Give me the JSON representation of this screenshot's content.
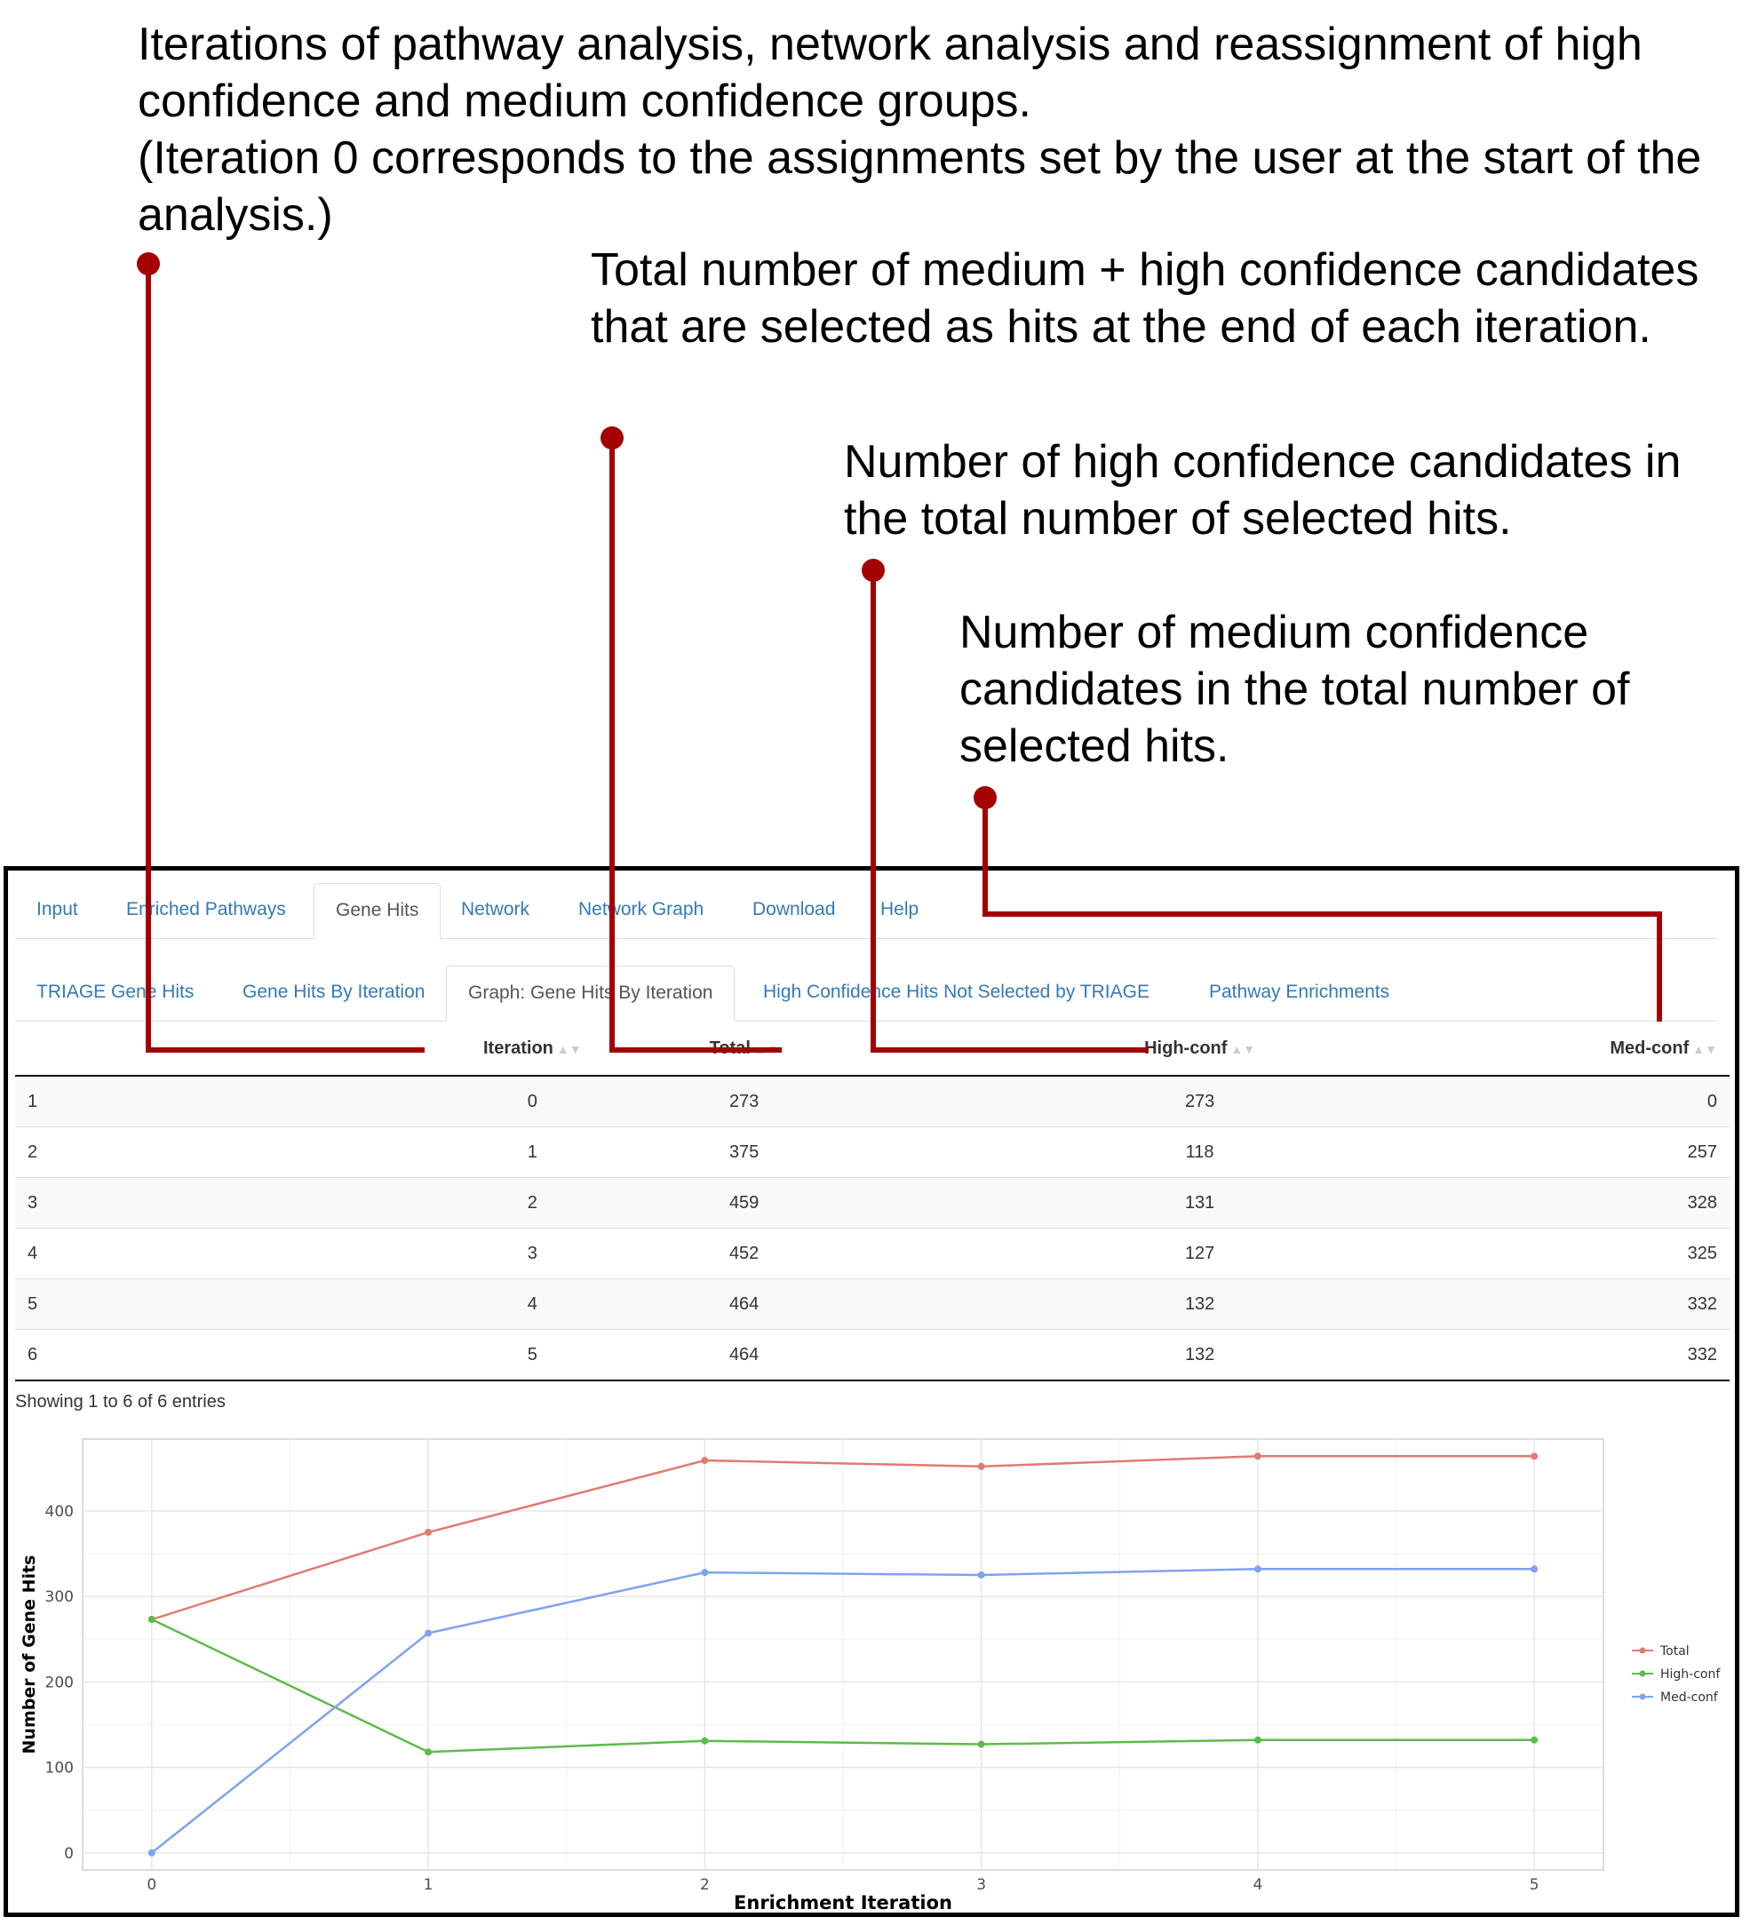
{
  "annotations": {
    "iterations_text": "Iterations of pathway analysis, network analysis and reassignment of high confidence and medium confidence groups.",
    "iterations_note": "(Iteration 0 corresponds to the assignments set by the user at the start of the analysis.)",
    "total_text": "Total number of medium + high confidence candidates that are selected as hits at the end of each iteration.",
    "high_conf_text": "Number of high confidence candidates in the total number of selected hits.",
    "med_conf_text": "Number of medium confidence candidates in the total number of selected hits."
  },
  "main_tabs": [
    {
      "label": "Input",
      "active": false
    },
    {
      "label": "Enriched Pathways",
      "active": false
    },
    {
      "label": "Gene Hits",
      "active": true
    },
    {
      "label": "Network",
      "active": false
    },
    {
      "label": "Network Graph",
      "active": false
    },
    {
      "label": "Download",
      "active": false
    },
    {
      "label": "Help",
      "active": false
    }
  ],
  "sub_tabs": [
    {
      "label": "TRIAGE Gene Hits",
      "active": false
    },
    {
      "label": "Gene Hits By Iteration",
      "active": false
    },
    {
      "label": "Graph: Gene Hits By Iteration",
      "active": true
    },
    {
      "label": "High Confidence Hits Not Selected by TRIAGE",
      "active": false
    },
    {
      "label": "Pathway Enrichments",
      "active": false
    }
  ],
  "table": {
    "columns": [
      "",
      "Iteration",
      "Total",
      "High-conf",
      "Med-conf"
    ],
    "rows": [
      [
        "1",
        "0",
        "273",
        "273",
        "0"
      ],
      [
        "2",
        "1",
        "375",
        "118",
        "257"
      ],
      [
        "3",
        "2",
        "459",
        "131",
        "328"
      ],
      [
        "4",
        "3",
        "452",
        "127",
        "325"
      ],
      [
        "5",
        "4",
        "464",
        "132",
        "332"
      ],
      [
        "6",
        "5",
        "464",
        "132",
        "332"
      ]
    ],
    "info": "Showing 1 to 6 of 6 entries"
  },
  "colors": {
    "annotation_line": "#a50000",
    "total": "#e07b72",
    "high_conf": "#5dbb4a",
    "med_conf": "#7ea3f2",
    "tab_link": "#337ab7"
  },
  "chart_data": {
    "type": "line",
    "x": [
      0,
      1,
      2,
      3,
      4,
      5
    ],
    "series": [
      {
        "name": "Total",
        "values": [
          273,
          375,
          459,
          452,
          464,
          464
        ]
      },
      {
        "name": "High-conf",
        "values": [
          273,
          118,
          131,
          127,
          132,
          132
        ]
      },
      {
        "name": "Med-conf",
        "values": [
          0,
          257,
          328,
          325,
          332,
          332
        ]
      }
    ],
    "xlabel": "Enrichment Iteration",
    "ylabel": "Number of Gene Hits",
    "yticks": [
      0,
      100,
      200,
      300,
      400
    ],
    "xticks": [
      0,
      1,
      2,
      3,
      4,
      5
    ],
    "ylim": [
      -20,
      484
    ],
    "xlim": [
      -0.25,
      5.25
    ],
    "grid": true,
    "legend_position": "right"
  }
}
